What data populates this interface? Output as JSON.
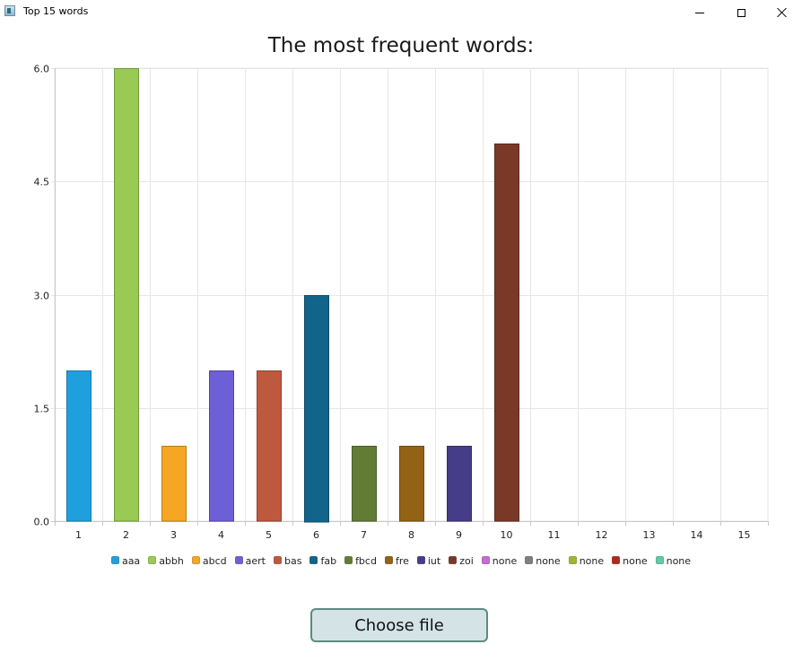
{
  "window": {
    "title": "Top 15 words"
  },
  "button": {
    "choose_file_label": "Choose file"
  },
  "colors": {
    "grid": "#e6e6e6",
    "axis": "#c8c8c8",
    "button_bg": "#d4e4e6",
    "button_border": "#5e8a80"
  },
  "chart_data": {
    "type": "bar",
    "title": "The most frequent words:",
    "xlabel": "",
    "ylabel": "",
    "categories": [
      "1",
      "2",
      "3",
      "4",
      "5",
      "6",
      "7",
      "8",
      "9",
      "10",
      "11",
      "12",
      "13",
      "14",
      "15"
    ],
    "ylim": [
      0,
      6
    ],
    "yticks": [
      "0.0",
      "1.5",
      "3.0",
      "4.5",
      "6.0"
    ],
    "ytick_values": [
      0,
      1.5,
      3,
      4.5,
      6
    ],
    "grid": true,
    "legend_position": "bottom",
    "series": [
      {
        "name": "aaa",
        "category": "1",
        "value": 2,
        "color": "#209fdf"
      },
      {
        "name": "abbh",
        "category": "2",
        "value": 6,
        "color": "#99ca53"
      },
      {
        "name": "abcd",
        "category": "3",
        "value": 1,
        "color": "#f6a625"
      },
      {
        "name": "aert",
        "category": "4",
        "value": 2,
        "color": "#6d5fd5"
      },
      {
        "name": "bas",
        "category": "5",
        "value": 2,
        "color": "#bf593e"
      },
      {
        "name": "fab",
        "category": "6",
        "value": 3,
        "color": "#11648a"
      },
      {
        "name": "fbcd",
        "category": "7",
        "value": 1,
        "color": "#627c35"
      },
      {
        "name": "fre",
        "category": "8",
        "value": 1,
        "color": "#946215"
      },
      {
        "name": "iut",
        "category": "9",
        "value": 1,
        "color": "#453d88"
      },
      {
        "name": "zoi",
        "category": "10",
        "value": 5,
        "color": "#7a3827"
      },
      {
        "name": "none",
        "category": "11",
        "value": 0,
        "color": "#c56bd6"
      },
      {
        "name": "none",
        "category": "12",
        "value": 0,
        "color": "#7f7f7f"
      },
      {
        "name": "none",
        "category": "13",
        "value": 0,
        "color": "#a2b436"
      },
      {
        "name": "none",
        "category": "14",
        "value": 0,
        "color": "#ad2b1c"
      },
      {
        "name": "none",
        "category": "15",
        "value": 0,
        "color": "#5bcca8"
      }
    ]
  }
}
